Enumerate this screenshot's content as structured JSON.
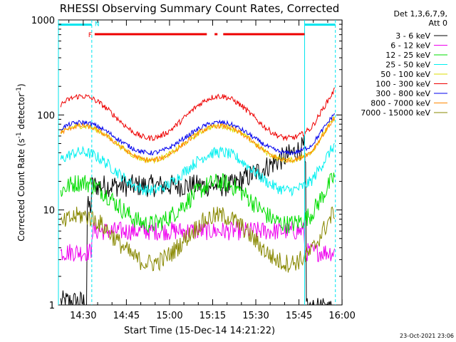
{
  "chart_data": {
    "type": "line",
    "title": "RHESSI Observing Summary Count Rates, Corrected",
    "xlabel": "Start Time (15-Dec-14 14:21:22)",
    "ylabel_main": "Corrected Count Rate (s",
    "ylabel_sup1": "-1",
    "ylabel_mid": " detector",
    "ylabel_sup2": "-1",
    "ylabel_end": ")",
    "yscale": "log",
    "ylim": [
      1,
      1000
    ],
    "xlim_minutes": [
      0,
      98.6
    ],
    "x_tick_labels": [
      "14:30",
      "14:45",
      "15:00",
      "15:15",
      "15:30",
      "15:45",
      "16:00"
    ],
    "x_tick_minutes": [
      8.63,
      23.63,
      38.63,
      53.63,
      68.63,
      83.63,
      98.63
    ],
    "y_tick_labels": [
      "1",
      "10",
      "100",
      "1000"
    ],
    "y_tick_values": [
      1,
      10,
      100,
      1000
    ],
    "legend_header": [
      "Det 1,3,6,7,9,",
      "Att 0"
    ],
    "legend_placement": "right",
    "flags": {
      "N_label": "N",
      "F_label": "F",
      "night_intervals_min": [
        [
          0,
          11.6
        ],
        [
          85.6,
          96.3
        ]
      ],
      "day_boundaries_min": [
        0,
        11.6,
        85.6,
        96.3
      ],
      "flare_intervals_min": [
        [
          12.6,
          51.6
        ],
        [
          54.3,
          55.3
        ],
        [
          57.3,
          85.6
        ]
      ],
      "N_color": "#00e5ee",
      "F_color": "#ee0000"
    },
    "series": [
      {
        "name": "3 - 6 keV",
        "color": "#000000",
        "shape": "low",
        "base": 18,
        "amp": 0.1,
        "noise": 0.12
      },
      {
        "name": "6 - 12 keV",
        "color": "#ee00ee",
        "shape": "flat",
        "base": 6,
        "amp": 0.05,
        "noise": 0.1
      },
      {
        "name": "12 - 25 keV",
        "color": "#00dd00",
        "shape": "wave",
        "base": 13,
        "amp": 0.22,
        "noise": 0.1
      },
      {
        "name": "25 - 50 keV",
        "color": "#00f0f0",
        "shape": "wave",
        "base": 28,
        "amp": 0.2,
        "noise": 0.06
      },
      {
        "name": "50 - 100 keV",
        "color": "#dddd00",
        "shape": "wave",
        "base": 55,
        "amp": 0.18,
        "noise": 0.03
      },
      {
        "name": "100 - 300 keV",
        "color": "#ee0000",
        "shape": "wave",
        "base": 105,
        "amp": 0.22,
        "noise": 0.03
      },
      {
        "name": "300 - 800 keV",
        "color": "#0000ee",
        "shape": "wave",
        "base": 62,
        "amp": 0.16,
        "noise": 0.025
      },
      {
        "name": "800 - 7000 keV",
        "color": "#ff8800",
        "shape": "wave",
        "base": 55,
        "amp": 0.18,
        "noise": 0.025
      },
      {
        "name": "7000 - 15000 keV",
        "color": "#888800",
        "shape": "wave",
        "base": 5.5,
        "amp": 0.25,
        "noise": 0.1
      }
    ]
  },
  "timestamp": "23-Oct-2021 23:06"
}
